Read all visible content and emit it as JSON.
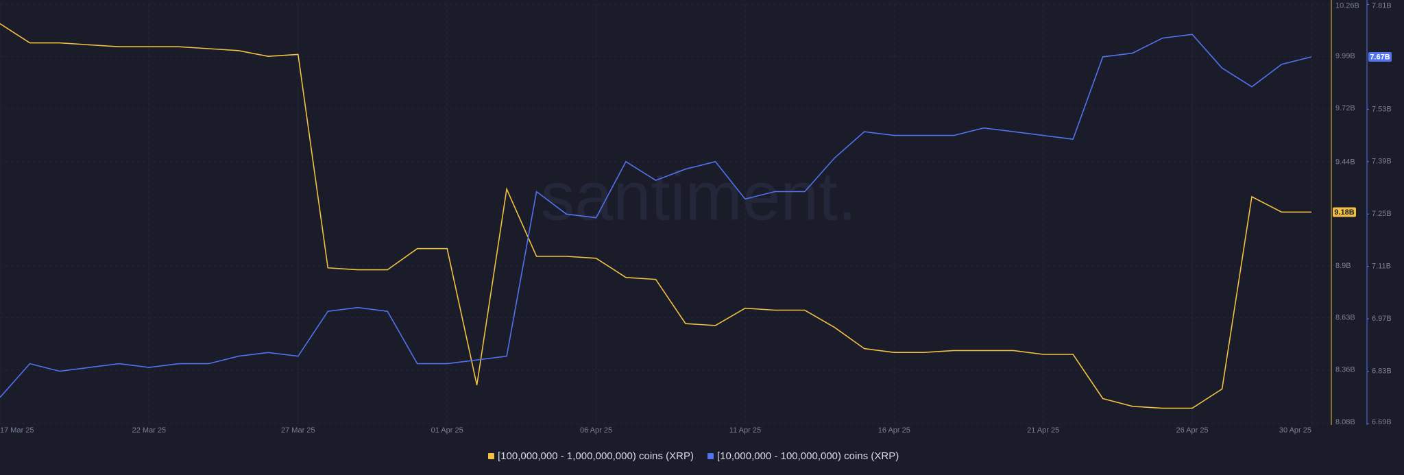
{
  "chart_data": {
    "type": "line",
    "watermark": "santiment.",
    "categories": [
      "17 Mar 25",
      null,
      null,
      null,
      null,
      "22 Mar 25",
      null,
      null,
      null,
      null,
      "27 Mar 25",
      null,
      null,
      null,
      null,
      "01 Apr 25",
      null,
      null,
      null,
      null,
      "06 Apr 25",
      null,
      null,
      null,
      null,
      "11 Apr 25",
      null,
      null,
      null,
      null,
      "16 Apr 25",
      null,
      null,
      null,
      null,
      "21 Apr 25",
      null,
      null,
      null,
      null,
      "26 Apr 25",
      null,
      null,
      null,
      "30 Apr 25"
    ],
    "series": [
      {
        "name": "[100,000,000 - 1,000,000,000) coins (XRP)",
        "color": "#f2c143",
        "axis": "y",
        "values": [
          10.16,
          10.06,
          10.06,
          10.05,
          10.04,
          10.04,
          10.04,
          10.03,
          10.02,
          9.99,
          10.0,
          8.89,
          8.88,
          8.88,
          8.99,
          8.99,
          8.28,
          9.3,
          8.95,
          8.95,
          8.94,
          8.84,
          8.83,
          8.6,
          8.59,
          8.68,
          8.67,
          8.67,
          8.58,
          8.47,
          8.45,
          8.45,
          8.46,
          8.46,
          8.46,
          8.44,
          8.44,
          8.21,
          8.17,
          8.16,
          8.16,
          8.26,
          9.26,
          9.18,
          9.18
        ],
        "value_labels": [
          null,
          null,
          null,
          null,
          null,
          null,
          null,
          null,
          null,
          null,
          null,
          null,
          null,
          null,
          null,
          null,
          null,
          null,
          null,
          null,
          null,
          null,
          null,
          null,
          null,
          null,
          null,
          null,
          null,
          null,
          null,
          null,
          null,
          null,
          null,
          null,
          null,
          null,
          null,
          null,
          null,
          null,
          null,
          null,
          "9.18B"
        ]
      },
      {
        "name": "[10,000,000 - 100,000,000) coins (XRP)",
        "color": "#5272ee",
        "axis": "y2",
        "values": [
          6.76,
          6.85,
          6.83,
          6.84,
          6.85,
          6.84,
          6.85,
          6.85,
          6.87,
          6.88,
          6.87,
          6.99,
          7.0,
          6.99,
          6.85,
          6.85,
          6.86,
          6.87,
          7.31,
          7.25,
          7.24,
          7.39,
          7.34,
          7.37,
          7.39,
          7.29,
          7.31,
          7.31,
          7.4,
          7.47,
          7.46,
          7.46,
          7.46,
          7.48,
          7.47,
          7.46,
          7.45,
          7.67,
          7.68,
          7.72,
          7.73,
          7.64,
          7.59,
          7.65,
          7.67
        ],
        "value_labels": [
          null,
          null,
          null,
          null,
          null,
          null,
          null,
          null,
          null,
          null,
          null,
          null,
          null,
          null,
          null,
          null,
          null,
          null,
          null,
          null,
          null,
          null,
          null,
          null,
          null,
          null,
          null,
          null,
          null,
          null,
          null,
          null,
          null,
          null,
          null,
          null,
          null,
          null,
          null,
          null,
          null,
          null,
          null,
          null,
          "7.67B"
        ]
      }
    ],
    "ylim": [
      8.08,
      10.26
    ],
    "yticks": [
      {
        "value": 10.26,
        "label": "10.26B"
      },
      {
        "value": 9.99,
        "label": "9.99B"
      },
      {
        "value": 9.72,
        "label": "9.72B"
      },
      {
        "value": 9.44,
        "label": "9.44B"
      },
      {
        "value": 8.9,
        "label": "8.9B"
      },
      {
        "value": 8.63,
        "label": "8.63B"
      },
      {
        "value": 8.36,
        "label": "8.36B"
      },
      {
        "value": 8.08,
        "label": "8.08B"
      }
    ],
    "y2lim": [
      6.69,
      7.81
    ],
    "y2ticks": [
      {
        "value": 7.81,
        "label": "7.81B"
      },
      {
        "value": 7.53,
        "label": "7.53B"
      },
      {
        "value": 7.39,
        "label": "7.39B"
      },
      {
        "value": 7.25,
        "label": "7.25B"
      },
      {
        "value": 7.11,
        "label": "7.11B"
      },
      {
        "value": 6.97,
        "label": "6.97B"
      },
      {
        "value": 6.83,
        "label": "6.83B"
      },
      {
        "value": 6.69,
        "label": "6.69B"
      }
    ],
    "grid": true
  }
}
